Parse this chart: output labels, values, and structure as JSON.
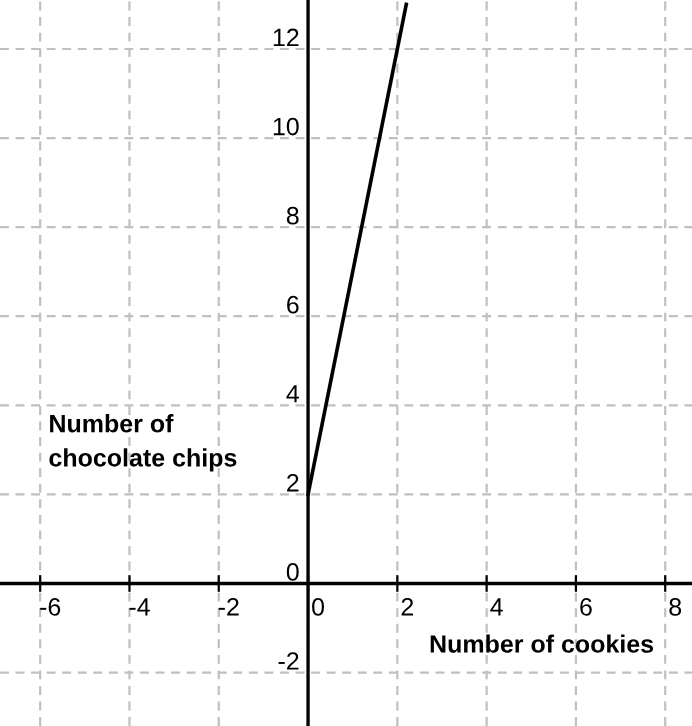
{
  "chart_data": {
    "type": "line",
    "xlabel": "Number of cookies",
    "ylabel": "Number of\nchocolate chips",
    "x": [
      0,
      2.2
    ],
    "series": [
      {
        "color": "#000000",
        "values": [
          2,
          13
        ]
      }
    ],
    "xlim": [
      -6.9,
      8.6
    ],
    "ylim": [
      -3.2,
      13.1
    ],
    "xticks": [
      -6,
      -4,
      -2,
      0,
      2,
      4,
      6,
      8
    ],
    "yticks": [
      -2,
      0,
      2,
      4,
      6,
      8,
      10,
      12
    ],
    "grid": true,
    "legend": false,
    "marker": "none",
    "line_style": "solid"
  }
}
